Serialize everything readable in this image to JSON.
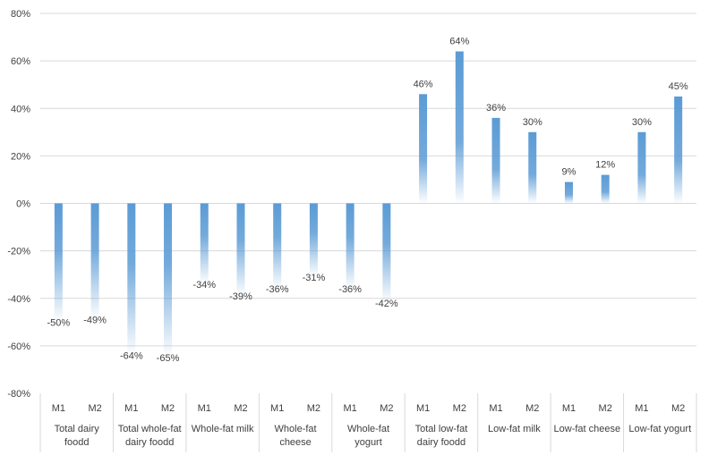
{
  "chart_data": {
    "type": "bar",
    "title": "",
    "xlabel": "",
    "ylabel": "",
    "ylim": [
      -80,
      80
    ],
    "y_ticks": [
      80,
      60,
      40,
      20,
      0,
      -20,
      -40,
      -60,
      -80
    ],
    "y_tick_labels": [
      "80%",
      "60%",
      "40%",
      "20%",
      "0%",
      "-20%",
      "-40%",
      "-60%",
      "-80%"
    ],
    "grid": true,
    "bar_color": "#5b9bd5",
    "groups": [
      {
        "name_lines": [
          "Total dairy",
          "foodd"
        ],
        "bars": [
          {
            "label": "M1",
            "value": -50,
            "text": "-50%"
          },
          {
            "label": "M2",
            "value": -49,
            "text": "-49%"
          }
        ]
      },
      {
        "name_lines": [
          "Total whole-fat",
          "dairy foodd"
        ],
        "bars": [
          {
            "label": "M1",
            "value": -64,
            "text": "-64%"
          },
          {
            "label": "M2",
            "value": -65,
            "text": "-65%"
          }
        ]
      },
      {
        "name_lines": [
          "Whole-fat milk"
        ],
        "bars": [
          {
            "label": "M1",
            "value": -34,
            "text": "-34%"
          },
          {
            "label": "M2",
            "value": -39,
            "text": "-39%"
          }
        ]
      },
      {
        "name_lines": [
          "Whole-fat",
          "cheese"
        ],
        "bars": [
          {
            "label": "M1",
            "value": -36,
            "text": "-36%"
          },
          {
            "label": "M2",
            "value": -31,
            "text": "-31%"
          }
        ]
      },
      {
        "name_lines": [
          "Whole-fat",
          "yogurt"
        ],
        "bars": [
          {
            "label": "M1",
            "value": -36,
            "text": "-36%"
          },
          {
            "label": "M2",
            "value": -42,
            "text": "-42%"
          }
        ]
      },
      {
        "name_lines": [
          "Total low-fat",
          "dairy foodd"
        ],
        "bars": [
          {
            "label": "M1",
            "value": 46,
            "text": "46%"
          },
          {
            "label": "M2",
            "value": 64,
            "text": "64%"
          }
        ]
      },
      {
        "name_lines": [
          "Low-fat milk"
        ],
        "bars": [
          {
            "label": "M1",
            "value": 36,
            "text": "36%"
          },
          {
            "label": "M2",
            "value": 30,
            "text": "30%"
          }
        ]
      },
      {
        "name_lines": [
          "Low-fat cheese"
        ],
        "bars": [
          {
            "label": "M1",
            "value": 9,
            "text": "9%"
          },
          {
            "label": "M2",
            "value": 12,
            "text": "12%"
          }
        ]
      },
      {
        "name_lines": [
          "Low-fat yogurt"
        ],
        "bars": [
          {
            "label": "M1",
            "value": 30,
            "text": "30%"
          },
          {
            "label": "M2",
            "value": 45,
            "text": "45%"
          }
        ]
      }
    ]
  }
}
